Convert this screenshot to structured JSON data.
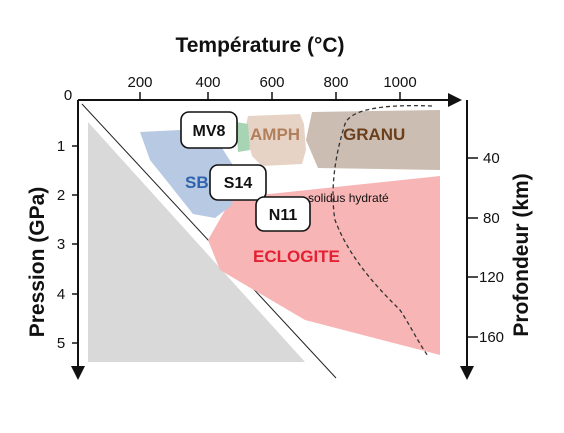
{
  "diagram": {
    "top_axis_title": "Température (°C)",
    "left_axis_title": "Pression (GPa)",
    "right_axis_title": "Profondeur (km)",
    "temperature_ticks": [
      "200",
      "400",
      "600",
      "800",
      "1000"
    ],
    "pressure_ticks": [
      "0",
      "1",
      "2",
      "3",
      "4",
      "5"
    ],
    "depth_ticks": [
      "40",
      "80",
      "120",
      "160"
    ],
    "fields": {
      "amph": {
        "label": "AMPH",
        "color": "#b07f5c",
        "fill": "#e7d3c5"
      },
      "granu": {
        "label": "GRANU",
        "color": "#6b3f1c",
        "fill": "#cbbdb1"
      },
      "sb": {
        "label": "SB",
        "color": "#2f63ad",
        "fill": "#b8c9e3"
      },
      "eclogite": {
        "label": "ECLOGITE",
        "color": "#e42032",
        "fill": "#f7b5b6"
      }
    },
    "samples": [
      "MV8",
      "S14",
      "N11"
    ],
    "solidus_label": "solidus hydraté"
  }
}
